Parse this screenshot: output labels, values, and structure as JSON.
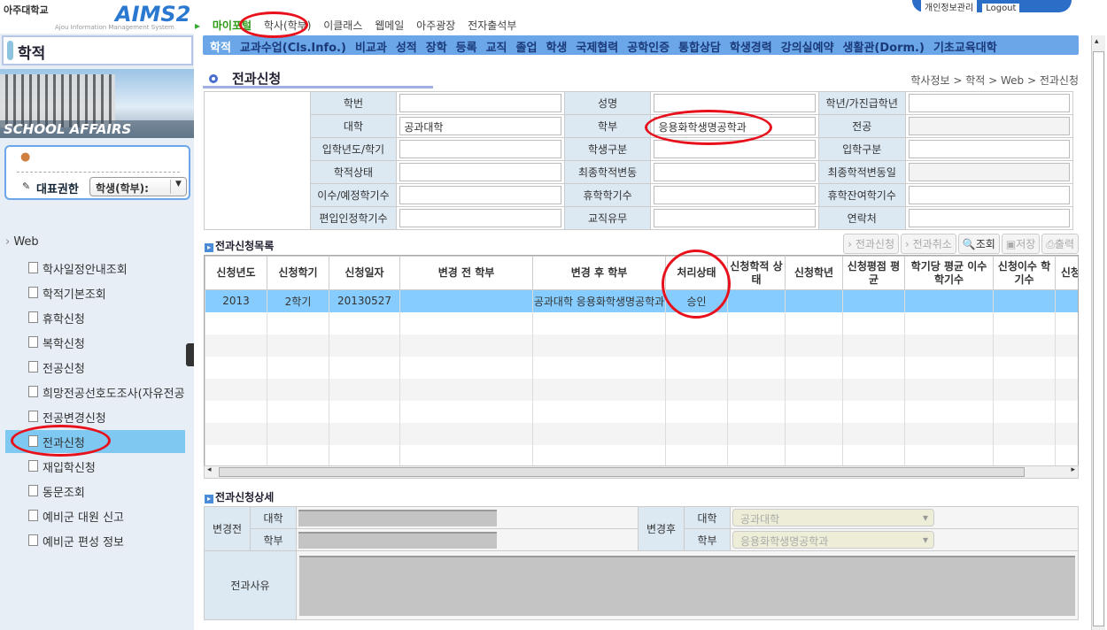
{
  "header": {
    "school": "아주대학교",
    "logo": "AIMS2",
    "logo_sub": "Ajou Information Management System",
    "links": [
      "개인정보관리",
      "Logout"
    ]
  },
  "topnav": [
    "마이포털",
    "학사(학부)",
    "이클래스",
    "웹메일",
    "아주광장",
    "전자출석부"
  ],
  "menu": [
    "학적",
    "교과수업(Cls.Info.)",
    "비교과",
    "성적",
    "장학",
    "등록",
    "교직",
    "졸업",
    "학생",
    "국제협력",
    "공학인증",
    "통합상담",
    "학생경력",
    "강의실예약",
    "생활관(Dorm.)",
    "기초교육대학"
  ],
  "sidebar": {
    "title": "학적",
    "image_caption": "SCHOOL AFFAIRS",
    "role_label": "대표권한",
    "role_value": "학생(학부):",
    "tree_root": "Web",
    "items": [
      "학사일정안내조회",
      "학적기본조회",
      "휴학신청",
      "복학신청",
      "전공신청",
      "희망전공선호도조사(자유전공",
      "전공변경신청",
      "전과신청",
      "재입학신청",
      "동문조회",
      "예비군 대원 신고",
      "예비군 편성 정보"
    ],
    "active_index": 7
  },
  "page": {
    "title": "전과신청",
    "breadcrumb": "학사정보 > 학적 > Web > 전과신청"
  },
  "info": [
    [
      {
        "l": "학번",
        "v": ""
      },
      {
        "l": "성명",
        "v": ""
      },
      {
        "l": "학년/가진급학년",
        "v": ""
      }
    ],
    [
      {
        "l": "대학",
        "v": "공과대학"
      },
      {
        "l": "학부",
        "v": "응용화학생명공학과"
      },
      {
        "l": "전공",
        "v": ""
      }
    ],
    [
      {
        "l": "입학년도/학기",
        "v": ""
      },
      {
        "l": "학생구분",
        "v": ""
      },
      {
        "l": "입학구분",
        "v": ""
      }
    ],
    [
      {
        "l": "학적상태",
        "v": ""
      },
      {
        "l": "최종학적변동",
        "v": ""
      },
      {
        "l": "최종학적변동일",
        "v": ""
      }
    ],
    [
      {
        "l": "이수/예정학기수",
        "v": ""
      },
      {
        "l": "휴학학기수",
        "v": ""
      },
      {
        "l": "휴학잔여학기수",
        "v": ""
      }
    ],
    [
      {
        "l": "편입인정학기수",
        "v": ""
      },
      {
        "l": "교직유무",
        "v": ""
      },
      {
        "l": "연락처",
        "v": ""
      }
    ]
  ],
  "list": {
    "title": "전과신청목록",
    "buttons": [
      "전과신청",
      "전과취소",
      "조회",
      "저장",
      "출력"
    ],
    "columns": [
      "신청년도",
      "신청학기",
      "신청일자",
      "변경 전 학부",
      "변경 후 학부",
      "처리상태",
      "신청학적 상태",
      "신청학년",
      "신청평점 평균",
      "학기당 평균 이수 학기수",
      "신청이수 학기수",
      "신청 학"
    ],
    "rows": [
      [
        "2013",
        "2학기",
        "20130527",
        "",
        "공과대학 응용화학생명공학과",
        "승인",
        "",
        "",
        "",
        "",
        "",
        ""
      ]
    ]
  },
  "detail": {
    "title": "전과신청상세",
    "before_label": "변경전",
    "after_label": "변경후",
    "college_label": "대학",
    "dept_label": "학부",
    "after_college": "공과대학",
    "after_dept": "응용화학생명공학과",
    "reason_label": "전과사유"
  },
  "colors": {
    "menu": "#6aa6e8",
    "selected_row": "#86ccff",
    "annotation": "#e8101a"
  }
}
